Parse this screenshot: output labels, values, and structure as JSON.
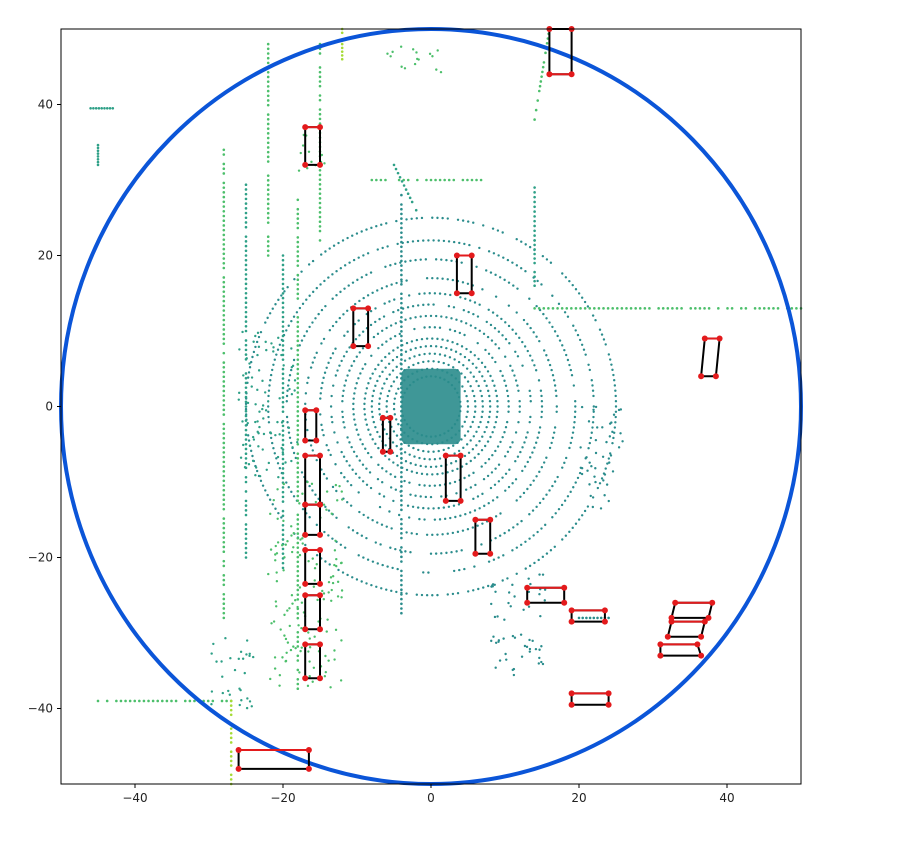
{
  "chart_data": {
    "type": "scatter",
    "title": "",
    "xlabel": "",
    "ylabel": "",
    "xlim": [
      -50,
      50
    ],
    "ylim": [
      -50,
      50
    ],
    "x_ticks": [
      -40,
      -20,
      0,
      20,
      40
    ],
    "x_tick_labels": [
      "−40",
      "−20",
      "0",
      "20",
      "40"
    ],
    "y_ticks": [
      40,
      20,
      0,
      -20,
      -40
    ],
    "y_tick_labels": [
      "40",
      "20",
      "0",
      "−20",
      "−40"
    ],
    "grid": false,
    "legend": "none",
    "range_circle": {
      "center": [
        0,
        0
      ],
      "radius": 50,
      "color": "#0b55d8"
    },
    "colors": {
      "ring_points": "#2a8c8c",
      "scatter_mid": "#2ea087",
      "scatter_green": "#4cbf6b",
      "scatter_light": "#a5db36",
      "box_edge": "#000000",
      "box_corner": "#e31a1c"
    },
    "ego_region": {
      "x": [
        -4,
        4
      ],
      "y": [
        -5,
        5
      ]
    },
    "scan_rings": [
      {
        "r": 4
      },
      {
        "r": 5
      },
      {
        "r": 6
      },
      {
        "r": 7
      },
      {
        "r": 8
      },
      {
        "r": 9
      },
      {
        "r": 10.5
      },
      {
        "r": 12
      },
      {
        "r": 13.5
      },
      {
        "r": 15
      },
      {
        "r": 17
      },
      {
        "r": 19.5
      },
      {
        "r": 22
      },
      {
        "r": 25
      }
    ],
    "point_lines": [
      {
        "from": [
          -28,
          34
        ],
        "to": [
          -28,
          -28
        ],
        "color": "scatter_green"
      },
      {
        "from": [
          -25,
          30
        ],
        "to": [
          -25,
          -20
        ],
        "color": "scatter_mid"
      },
      {
        "from": [
          -22,
          48
        ],
        "to": [
          -22,
          20
        ],
        "color": "scatter_green"
      },
      {
        "from": [
          -20,
          20
        ],
        "to": [
          -20,
          -22
        ],
        "color": "scatter_mid"
      },
      {
        "from": [
          -18,
          28
        ],
        "to": [
          -18,
          -38
        ],
        "color": "scatter_green"
      },
      {
        "from": [
          -15,
          48
        ],
        "to": [
          -15,
          22
        ],
        "color": "scatter_green"
      },
      {
        "from": [
          -4,
          28
        ],
        "to": [
          -4,
          -28
        ],
        "color": "ring_points"
      },
      {
        "from": [
          -8,
          30
        ],
        "to": [
          8,
          30
        ],
        "color": "scatter_green"
      },
      {
        "from": [
          -5,
          32
        ],
        "to": [
          -2,
          26
        ],
        "color": "scatter_mid"
      },
      {
        "from": [
          14,
          29
        ],
        "to": [
          14,
          22
        ],
        "color": "scatter_mid"
      },
      {
        "from": [
          14,
          22
        ],
        "to": [
          14,
          16
        ],
        "color": "scatter_mid"
      },
      {
        "from": [
          14,
          13
        ],
        "to": [
          50,
          13
        ],
        "color": "scatter_green"
      },
      {
        "from": [
          -46,
          39.5
        ],
        "to": [
          -43,
          39.5
        ],
        "color": "scatter_mid"
      },
      {
        "from": [
          -45,
          35
        ],
        "to": [
          -45,
          32
        ],
        "color": "scatter_mid"
      },
      {
        "from": [
          -45,
          -39
        ],
        "to": [
          -27,
          -39
        ],
        "color": "scatter_green"
      },
      {
        "from": [
          -27,
          -39
        ],
        "to": [
          -27,
          -50
        ],
        "color": "scatter_light"
      },
      {
        "from": [
          16,
          50
        ],
        "to": [
          14,
          38
        ],
        "color": "scatter_green"
      },
      {
        "from": [
          -12,
          50
        ],
        "to": [
          -12,
          46
        ],
        "color": "scatter_light"
      },
      {
        "from": [
          20,
          -28
        ],
        "to": [
          24,
          -28
        ],
        "color": "ring_points"
      }
    ],
    "point_clusters": [
      {
        "x": [
          -22,
          -12
        ],
        "y": [
          -38,
          -10
        ],
        "color": "scatter_green"
      },
      {
        "x": [
          -26,
          -18
        ],
        "y": [
          -10,
          10
        ],
        "color": "scatter_mid"
      },
      {
        "x": [
          -18,
          -14
        ],
        "y": [
          30,
          36
        ],
        "color": "scatter_green"
      },
      {
        "x": [
          -6,
          2
        ],
        "y": [
          44,
          48
        ],
        "color": "scatter_green"
      },
      {
        "x": [
          -30,
          -24
        ],
        "y": [
          -40,
          -30
        ],
        "color": "scatter_mid"
      },
      {
        "x": [
          8,
          16
        ],
        "y": [
          -36,
          -22
        ],
        "color": "ring_points"
      },
      {
        "x": [
          20,
          26
        ],
        "y": [
          -14,
          0
        ],
        "color": "ring_points"
      }
    ],
    "boxes": [
      {
        "corners": [
          [
            16,
            44
          ],
          [
            19,
            44
          ],
          [
            19,
            50
          ],
          [
            16,
            50
          ]
        ]
      },
      {
        "corners": [
          [
            -17,
            37
          ],
          [
            -15,
            37
          ],
          [
            -15,
            32
          ],
          [
            -17,
            32
          ]
        ]
      },
      {
        "corners": [
          [
            3.5,
            20
          ],
          [
            5.5,
            20
          ],
          [
            5.5,
            15
          ],
          [
            3.5,
            15
          ]
        ]
      },
      {
        "corners": [
          [
            -10.5,
            13
          ],
          [
            -8.5,
            13
          ],
          [
            -8.5,
            8
          ],
          [
            -10.5,
            8
          ]
        ]
      },
      {
        "corners": [
          [
            37,
            9
          ],
          [
            39,
            9
          ],
          [
            38.5,
            4
          ],
          [
            36.5,
            4
          ]
        ]
      },
      {
        "corners": [
          [
            -17,
            -0.5
          ],
          [
            -15.5,
            -0.5
          ],
          [
            -15.5,
            -4.5
          ],
          [
            -17,
            -4.5
          ]
        ]
      },
      {
        "corners": [
          [
            -6.5,
            -1.5
          ],
          [
            -5.5,
            -1.5
          ],
          [
            -5.5,
            -6
          ],
          [
            -6.5,
            -6
          ]
        ]
      },
      {
        "corners": [
          [
            2,
            -6.5
          ],
          [
            4,
            -6.5
          ],
          [
            4,
            -12.5
          ],
          [
            2,
            -12.5
          ]
        ]
      },
      {
        "corners": [
          [
            -17,
            -6.5
          ],
          [
            -15,
            -6.5
          ],
          [
            -15,
            -13
          ],
          [
            -17,
            -13
          ]
        ]
      },
      {
        "corners": [
          [
            -17,
            -13
          ],
          [
            -15,
            -13
          ],
          [
            -15,
            -17
          ],
          [
            -17,
            -17
          ]
        ]
      },
      {
        "corners": [
          [
            6,
            -15
          ],
          [
            8,
            -15
          ],
          [
            8,
            -19.5
          ],
          [
            6,
            -19.5
          ]
        ]
      },
      {
        "corners": [
          [
            -17,
            -19
          ],
          [
            -15,
            -19
          ],
          [
            -15,
            -23.5
          ],
          [
            -17,
            -23.5
          ]
        ]
      },
      {
        "corners": [
          [
            13,
            -24
          ],
          [
            18,
            -24
          ],
          [
            18,
            -26
          ],
          [
            13,
            -26
          ]
        ]
      },
      {
        "corners": [
          [
            -17,
            -25
          ],
          [
            -15,
            -25
          ],
          [
            -15,
            -29.5
          ],
          [
            -17,
            -29.5
          ]
        ]
      },
      {
        "corners": [
          [
            19,
            -27
          ],
          [
            23.5,
            -27
          ],
          [
            23.5,
            -28.5
          ],
          [
            19,
            -28.5
          ]
        ]
      },
      {
        "corners": [
          [
            33,
            -26
          ],
          [
            38,
            -26
          ],
          [
            37.5,
            -28
          ],
          [
            32.5,
            -28
          ]
        ]
      },
      {
        "corners": [
          [
            32.5,
            -28.5
          ],
          [
            37,
            -28.5
          ],
          [
            36.5,
            -30.5
          ],
          [
            32,
            -30.5
          ]
        ]
      },
      {
        "corners": [
          [
            31,
            -31.5
          ],
          [
            36,
            -31.5
          ],
          [
            36.5,
            -33
          ],
          [
            31,
            -33
          ]
        ]
      },
      {
        "corners": [
          [
            -17,
            -31.5
          ],
          [
            -15,
            -31.5
          ],
          [
            -15,
            -36
          ],
          [
            -17,
            -36
          ]
        ]
      },
      {
        "corners": [
          [
            19,
            -38
          ],
          [
            24,
            -38
          ],
          [
            24,
            -39.5
          ],
          [
            19,
            -39.5
          ]
        ]
      },
      {
        "corners": [
          [
            -26,
            -45.5
          ],
          [
            -16.5,
            -45.5
          ],
          [
            -16.5,
            -48
          ],
          [
            -26,
            -48
          ]
        ]
      }
    ]
  }
}
